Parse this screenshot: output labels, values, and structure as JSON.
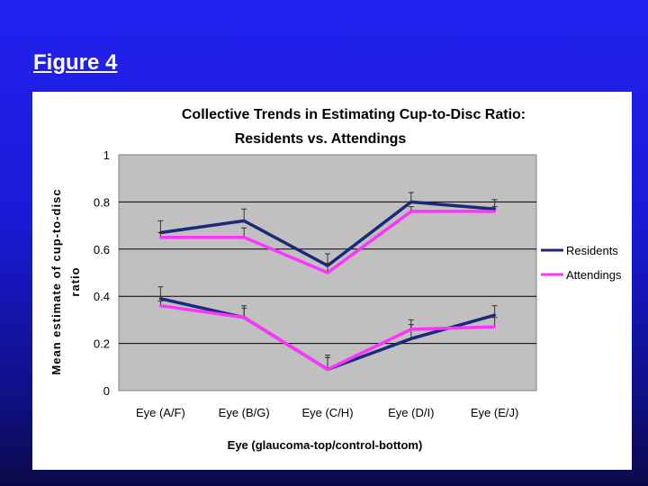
{
  "slide": {
    "title": "Figure 4"
  },
  "colors": {
    "residents": "#1a2a7a",
    "attendings": "#ff33ff",
    "plot_bg": "#c0c0c0"
  },
  "chart_data": {
    "type": "line",
    "title_line1": "Collective Trends in Estimating Cup-to-Disc Ratio:",
    "title_line2": "Residents vs. Attendings",
    "ylabel_line1": "Mean estimate of cup-to-disc",
    "ylabel_line2": "ratio",
    "xlabel": "Eye (glaucoma-top/control-bottom)",
    "categories": [
      "Eye (A/F)",
      "Eye (B/G)",
      "Eye (C/H)",
      "Eye (D/I)",
      "Eye (E/J)"
    ],
    "ylim": [
      0,
      1
    ],
    "yticks": [
      "0",
      "0.2",
      "0.4",
      "0.6",
      "0.8",
      "1"
    ],
    "legend_position": "right",
    "series": [
      {
        "name": "Residents",
        "group": "glaucoma-top",
        "values": [
          0.67,
          0.72,
          0.53,
          0.8,
          0.77
        ],
        "errors": [
          0.05,
          0.05,
          0.05,
          0.04,
          0.04
        ]
      },
      {
        "name": "Attendings",
        "group": "glaucoma-top",
        "values": [
          0.65,
          0.65,
          0.5,
          0.76,
          0.76
        ],
        "errors": [
          0.02,
          0.04,
          0.04,
          0.02,
          0.02
        ]
      },
      {
        "name": "Residents",
        "group": "control-bottom",
        "values": [
          0.39,
          0.31,
          0.09,
          0.22,
          0.32
        ],
        "errors": [
          0.05,
          0.05,
          0.06,
          0.06,
          0.04
        ]
      },
      {
        "name": "Attendings",
        "group": "control-bottom",
        "values": [
          0.36,
          0.31,
          0.09,
          0.26,
          0.27
        ],
        "errors": [
          0.02,
          0.04,
          0.05,
          0.04,
          0.04
        ]
      }
    ],
    "legend": [
      "Residents",
      "Attendings"
    ]
  }
}
